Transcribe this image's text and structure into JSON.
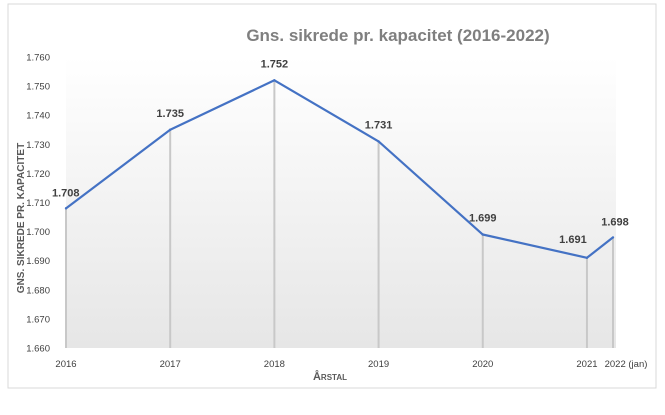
{
  "chart_data": {
    "type": "line",
    "title": "Gns. sikrede pr. kapacitet (2016-2022)",
    "xlabel": "Årstal",
    "ylabel": "GNS. SIKREDE PR. KAPACITET",
    "categories": [
      "2016",
      "2017",
      "2018",
      "2019",
      "2020",
      "2021",
      "2022 (jan)"
    ],
    "x_positions": [
      2016,
      2017,
      2018,
      2019,
      2020,
      2021,
      2021.25
    ],
    "series": [
      {
        "values": [
          1.708,
          1.735,
          1.752,
          1.731,
          1.699,
          1.691,
          1.698
        ],
        "labels": [
          "1.708",
          "1.735",
          "1.752",
          "1.731",
          "1.699",
          "1.691",
          "1.698"
        ],
        "color": "#4472C4"
      }
    ],
    "ylim": [
      1.66,
      1.76
    ],
    "yticks": [
      1.66,
      1.67,
      1.68,
      1.69,
      1.7,
      1.71,
      1.72,
      1.73,
      1.74,
      1.75,
      1.76
    ],
    "ytick_labels": [
      "1.660",
      "1.670",
      "1.680",
      "1.690",
      "1.700",
      "1.710",
      "1.720",
      "1.730",
      "1.740",
      "1.750",
      "1.760"
    ],
    "drop_lines": true,
    "grid": false,
    "legend": "none"
  }
}
